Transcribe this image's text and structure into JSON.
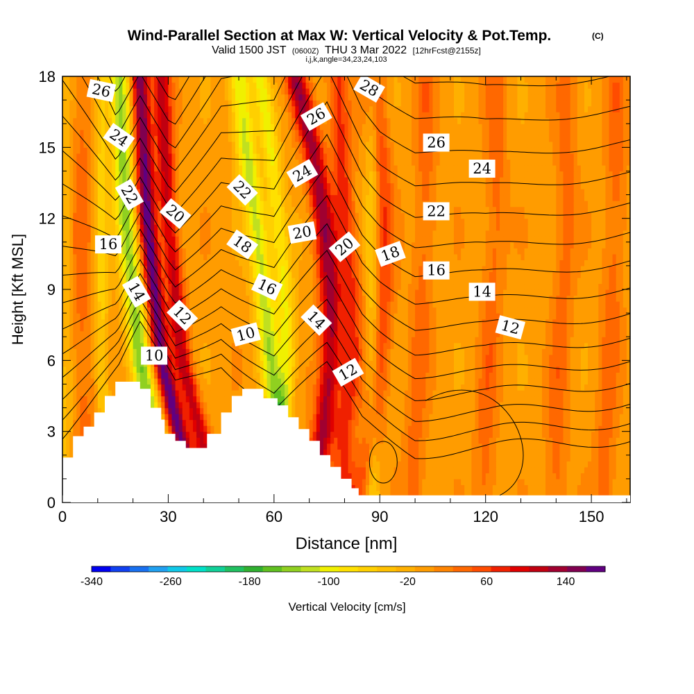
{
  "title": {
    "main": "Wind-Parallel Section at Max W: Vertical Velocity & Pot.Temp.",
    "main_suffix": "(C)",
    "valid_prefix": "Valid 1500 JST",
    "valid_zulu": "(0600Z)",
    "valid_date": "THU 3 Mar 2022",
    "forecast": "[12hrFcst@2155z]",
    "indices": "i,j,k,angle=34,23,24,103"
  },
  "chart_data": {
    "type": "heatmap",
    "xlabel": "Distance [nm]",
    "ylabel": "Height [Kft MSL]",
    "xlim": [
      0,
      161
    ],
    "ylim": [
      0,
      18
    ],
    "xticks": [
      0,
      30,
      60,
      90,
      120,
      150
    ],
    "yticks": [
      0,
      3,
      6,
      9,
      12,
      15,
      18
    ],
    "colorbar": {
      "label": "Vertical Velocity [cm/s]",
      "min": -340,
      "max": 180,
      "step": 20,
      "tick_labels": [
        "-340",
        "-260",
        "-180",
        "-100",
        "-20",
        "60",
        "140"
      ],
      "colors": [
        "#0000f0",
        "#1040f0",
        "#1870f0",
        "#20a0f0",
        "#10c8e8",
        "#00e0c8",
        "#10d098",
        "#20c060",
        "#30b030",
        "#60c020",
        "#90d020",
        "#c0e020",
        "#f0f000",
        "#ffe000",
        "#ffd000",
        "#ffc000",
        "#ffb000",
        "#ff9c00",
        "#ff8400",
        "#ff6800",
        "#ff4c00",
        "#f02000",
        "#e00000",
        "#c00010",
        "#a00030",
        "#800050",
        "#600080"
      ]
    },
    "terrain_kft": [
      [
        0,
        1.9
      ],
      [
        3,
        1.9
      ],
      [
        3,
        2.8
      ],
      [
        6,
        2.8
      ],
      [
        6,
        3.2
      ],
      [
        9,
        3.2
      ],
      [
        9,
        3.8
      ],
      [
        12,
        3.8
      ],
      [
        12,
        4.5
      ],
      [
        15,
        4.5
      ],
      [
        15,
        5.1
      ],
      [
        22,
        5.1
      ],
      [
        22,
        4.8
      ],
      [
        25,
        4.8
      ],
      [
        25,
        4.0
      ],
      [
        28,
        4.0
      ],
      [
        28,
        3.5
      ],
      [
        29,
        3.5
      ],
      [
        29,
        2.9
      ],
      [
        32,
        2.9
      ],
      [
        32,
        2.6
      ],
      [
        35,
        2.6
      ],
      [
        35,
        2.3
      ],
      [
        41,
        2.3
      ],
      [
        41,
        2.9
      ],
      [
        45,
        2.9
      ],
      [
        45,
        3.8
      ],
      [
        48,
        3.8
      ],
      [
        48,
        4.5
      ],
      [
        51,
        4.5
      ],
      [
        51,
        4.8
      ],
      [
        57,
        4.8
      ],
      [
        57,
        4.4
      ],
      [
        61,
        4.4
      ],
      [
        61,
        4.1
      ],
      [
        64,
        4.1
      ],
      [
        64,
        3.6
      ],
      [
        67,
        3.6
      ],
      [
        67,
        3.1
      ],
      [
        70,
        3.1
      ],
      [
        70,
        2.6
      ],
      [
        73,
        2.6
      ],
      [
        73,
        2.0
      ],
      [
        76,
        2.0
      ],
      [
        76,
        1.5
      ],
      [
        79,
        1.5
      ],
      [
        79,
        1.0
      ],
      [
        82,
        1.0
      ],
      [
        82,
        0.6
      ],
      [
        84,
        0.6
      ],
      [
        84,
        0.3
      ],
      [
        86,
        0.3
      ],
      [
        86,
        0.0
      ]
    ],
    "w_features": [
      {
        "x": [
          38,
          33,
          28,
          26,
          24,
          23,
          22
        ],
        "w": 180,
        "width_nm": 2.5
      },
      {
        "x": [
          43,
          39,
          34,
          32,
          30,
          29,
          28
        ],
        "w": 120,
        "width_nm": 2.5
      },
      {
        "x": [
          29,
          26,
          22,
          20,
          18,
          17,
          16
        ],
        "w": -140,
        "width_nm": 3
      },
      {
        "x": [
          65,
          61,
          59,
          57,
          55,
          52,
          50
        ],
        "w": -120,
        "width_nm": 3
      },
      {
        "x": [
          70,
          74,
          76,
          76,
          74,
          71,
          66
        ],
        "w": 140,
        "width_nm": 3
      },
      {
        "x": [
          57,
          62,
          64,
          63,
          61,
          59,
          56
        ],
        "w": -90,
        "width_nm": 2.5
      },
      {
        "x": [
          80,
          80,
          82,
          82,
          80,
          79,
          78
        ],
        "w": 80,
        "width_nm": 3
      },
      {
        "x": [
          84,
          88,
          90,
          91,
          91,
          90,
          88
        ],
        "w": 70,
        "width_nm": 3
      },
      {
        "x": [
          7,
          6,
          5,
          5,
          5,
          5,
          5
        ],
        "w": 40,
        "width_nm": 4
      },
      {
        "x": [
          1,
          1,
          1,
          1,
          1,
          1,
          1
        ],
        "w": -40,
        "width_nm": 2.5
      },
      {
        "x": [
          13,
          12,
          11,
          11,
          11,
          11,
          11
        ],
        "w": -60,
        "width_nm": 2
      },
      {
        "x": [
          100,
          100,
          101,
          102,
          103,
          103,
          103
        ],
        "w": 40,
        "width_nm": 3
      },
      {
        "x": [
          120,
          120,
          121,
          122,
          123,
          123,
          123
        ],
        "w": 40,
        "width_nm": 3
      },
      {
        "x": [
          140,
          140,
          141,
          142,
          143,
          143,
          143
        ],
        "w": 40,
        "width_nm": 3
      },
      {
        "x": [
          154,
          154,
          155,
          156,
          157,
          157,
          157
        ],
        "w": 40,
        "width_nm": 3
      },
      {
        "x": [
          88,
          88,
          88,
          88,
          88,
          88,
          88
        ],
        "w": -60,
        "width_nm": 2
      }
    ],
    "theta_levels": [
      10,
      11,
      12,
      13,
      14,
      15,
      16,
      17,
      18,
      19,
      20,
      21,
      22,
      23,
      24,
      25,
      26,
      27,
      28,
      29,
      30,
      31
    ],
    "theta_base": [
      [
        0,
        3.0
      ],
      [
        16,
        5.6
      ],
      [
        22,
        7.3
      ],
      [
        32,
        5.0
      ],
      [
        45,
        6.0
      ],
      [
        60,
        4.0
      ],
      [
        75,
        5.6
      ],
      [
        85,
        3.5
      ],
      [
        100,
        2.2
      ],
      [
        120,
        2.2
      ],
      [
        140,
        2.5
      ],
      [
        161,
        2.8
      ]
    ],
    "theta_spacing": [
      [
        0,
        0.75
      ],
      [
        15,
        0.45
      ],
      [
        30,
        0.45
      ],
      [
        45,
        0.55
      ],
      [
        60,
        0.65
      ],
      [
        75,
        0.8
      ],
      [
        90,
        0.72
      ],
      [
        120,
        0.7
      ],
      [
        161,
        0.7
      ]
    ],
    "contour_labels": [
      {
        "text": "26",
        "x": 11,
        "y": 17.4,
        "angle": 12
      },
      {
        "text": "24",
        "x": 16,
        "y": 15.4,
        "angle": 35
      },
      {
        "text": "22",
        "x": 19,
        "y": 13.0,
        "angle": 60
      },
      {
        "text": "16",
        "x": 13,
        "y": 10.9,
        "angle": 0
      },
      {
        "text": "14",
        "x": 21,
        "y": 8.9,
        "angle": 60
      },
      {
        "text": "10",
        "x": 26,
        "y": 6.2,
        "angle": 0
      },
      {
        "text": "20",
        "x": 32,
        "y": 12.2,
        "angle": 40
      },
      {
        "text": "12",
        "x": 34,
        "y": 7.9,
        "angle": 45
      },
      {
        "text": "22",
        "x": 51,
        "y": 13.2,
        "angle": 45
      },
      {
        "text": "18",
        "x": 51,
        "y": 10.9,
        "angle": 35
      },
      {
        "text": "16",
        "x": 58,
        "y": 9.1,
        "angle": 25
      },
      {
        "text": "10",
        "x": 52,
        "y": 7.1,
        "angle": -15
      },
      {
        "text": "26",
        "x": 72,
        "y": 16.3,
        "angle": -30
      },
      {
        "text": "24",
        "x": 68,
        "y": 13.9,
        "angle": -30
      },
      {
        "text": "20",
        "x": 68,
        "y": 11.4,
        "angle": -10
      },
      {
        "text": "14",
        "x": 72,
        "y": 7.7,
        "angle": 45
      },
      {
        "text": "20",
        "x": 80,
        "y": 10.8,
        "angle": -40
      },
      {
        "text": "12",
        "x": 81,
        "y": 5.5,
        "angle": -30
      },
      {
        "text": "28",
        "x": 87,
        "y": 17.5,
        "angle": 30
      },
      {
        "text": "18",
        "x": 93,
        "y": 10.5,
        "angle": -20
      },
      {
        "text": "26",
        "x": 106,
        "y": 15.2,
        "angle": 0
      },
      {
        "text": "22",
        "x": 106,
        "y": 12.3,
        "angle": 0
      },
      {
        "text": "16",
        "x": 106,
        "y": 9.8,
        "angle": 0
      },
      {
        "text": "24",
        "x": 119,
        "y": 14.1,
        "angle": 0
      },
      {
        "text": "14",
        "x": 119,
        "y": 8.9,
        "angle": 0
      },
      {
        "text": "12",
        "x": 127,
        "y": 7.4,
        "angle": 15
      }
    ]
  }
}
